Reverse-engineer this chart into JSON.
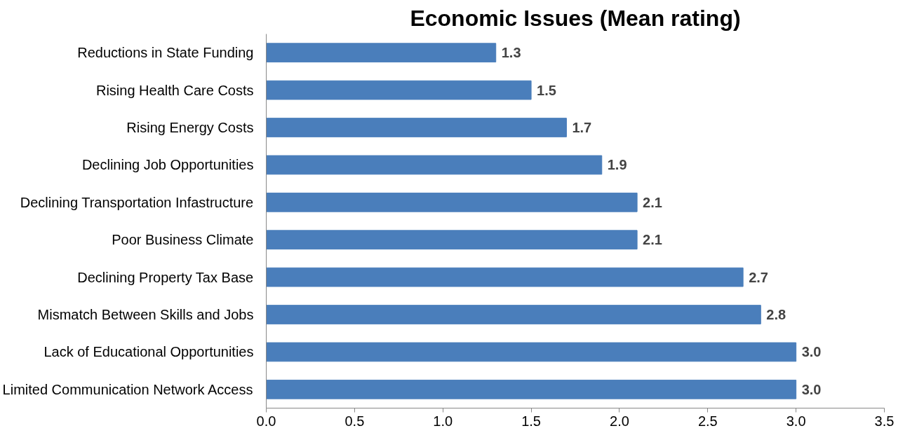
{
  "chart_data": {
    "type": "bar",
    "orientation": "horizontal",
    "title": "Economic Issues (Mean rating)",
    "categories": [
      "Reductions in State Funding",
      "Rising Health Care Costs",
      "Rising Energy Costs",
      "Declining Job Opportunities",
      "Declining Transportation Infastructure",
      "Poor Business Climate",
      "Declining Property Tax Base",
      "Mismatch Between Skills and Jobs",
      "Lack of Educational Opportunities",
      "Limited Communication Network Access"
    ],
    "values": [
      1.3,
      1.5,
      1.7,
      1.9,
      2.1,
      2.1,
      2.7,
      2.8,
      3.0,
      3.0
    ],
    "color": "#4a7ebb",
    "grid": false,
    "value_labels": [
      "1.3",
      "1.5",
      "1.7",
      "1.9",
      "2.1",
      "2.1",
      "2.7",
      "2.8",
      "3.0",
      "3.0"
    ],
    "xlim": [
      0,
      3.5
    ],
    "xticks": [
      {
        "value": 0,
        "label": "0.0"
      },
      {
        "value": 0.5,
        "label": "0.5"
      },
      {
        "value": 1,
        "label": "1.0"
      },
      {
        "value": 1.5,
        "label": "1.5"
      },
      {
        "value": 2,
        "label": "2.0"
      },
      {
        "value": 2.5,
        "label": "2.5"
      },
      {
        "value": 3,
        "label": "3.0"
      },
      {
        "value": 3.5,
        "label": "3.5"
      }
    ]
  }
}
